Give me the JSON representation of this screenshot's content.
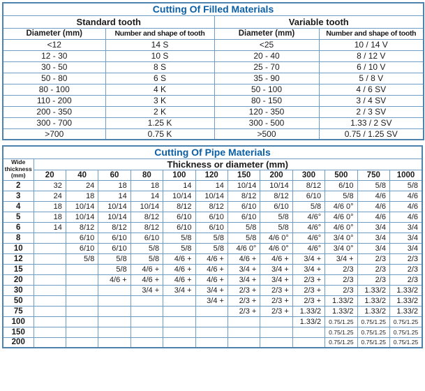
{
  "colors": {
    "title_blue": "#0b5fa5",
    "border_blue": "#6d9cc5",
    "outer_border_blue": "#4d82ad",
    "text": "#1b1b1b"
  },
  "filled_table": {
    "title": "Cutting Of Filled Materials",
    "groups": [
      {
        "label": "Standard tooth"
      },
      {
        "label": "Variable tooth"
      }
    ],
    "col_headers": [
      "Diameter (mm)",
      "Number and shape of tooth",
      "Diameter (mm)",
      "Number and shape of tooth"
    ],
    "rows": [
      [
        "<12",
        "14 S",
        "<25",
        "10 / 14 V"
      ],
      [
        "12 - 30",
        "10 S",
        "20 - 40",
        "8 / 12 V"
      ],
      [
        "30 - 50",
        "8 S",
        "25 - 70",
        "6 / 10 V"
      ],
      [
        "50 - 80",
        "6 S",
        "35 - 90",
        "5 / 8 V"
      ],
      [
        "80 - 100",
        "4 K",
        "50 - 100",
        "4 / 6 SV"
      ],
      [
        "110 - 200",
        "3 K",
        "80 - 150",
        "3 / 4 SV"
      ],
      [
        "200 - 350",
        "2 K",
        "120 - 350",
        "2 / 3 SV"
      ],
      [
        "300 - 700",
        "1.25 K",
        "300 - 500",
        "1.33 / 2 SV"
      ],
      [
        ">700",
        "0.75 K",
        ">500",
        "0.75 / 1.25 SV"
      ]
    ]
  },
  "pipe_table": {
    "title": "Cutting Of Pipe Materials",
    "corner_header": "Wide\nthickness\n(mm)",
    "span_header": "Thickness or diameter (mm)",
    "col_headers": [
      "20",
      "40",
      "60",
      "80",
      "100",
      "120",
      "150",
      "200",
      "300",
      "500",
      "750",
      "1000"
    ],
    "rows": [
      {
        "label": "2",
        "values": [
          "32",
          "24",
          "18",
          "18",
          "14",
          "14",
          "10/14",
          "10/14",
          "8/12",
          "6/10",
          "5/8",
          "5/8"
        ]
      },
      {
        "label": "3",
        "values": [
          "24",
          "18",
          "14",
          "14",
          "10/14",
          "10/14",
          "8/12",
          "8/12",
          "6/10",
          "5/8",
          "4/6",
          "4/6"
        ]
      },
      {
        "label": "4",
        "values": [
          "18",
          "10/14",
          "10/14",
          "10/14",
          "8/12",
          "8/12",
          "6/10",
          "6/10",
          "5/8",
          "4/6 0°",
          "4/6",
          "4/6"
        ]
      },
      {
        "label": "5",
        "values": [
          "18",
          "10/14",
          "10/14",
          "8/12",
          "6/10",
          "6/10",
          "6/10",
          "5/8",
          "4/6°",
          "4/6 0°",
          "4/6",
          "4/6"
        ]
      },
      {
        "label": "6",
        "values": [
          "14",
          "8/12",
          "8/12",
          "8/12",
          "6/10",
          "6/10",
          "5/8",
          "5/8",
          "4/6°",
          "4/6 0°",
          "3/4",
          "3/4"
        ]
      },
      {
        "label": "8",
        "values": [
          "",
          "6/10",
          "6/10",
          "6/10",
          "5/8",
          "5/8",
          "5/8",
          "4/6 0°",
          "4/6°",
          "3/4 0°",
          "3/4",
          "3/4"
        ]
      },
      {
        "label": "10",
        "values": [
          "",
          "6/10",
          "6/10",
          "5/8",
          "5/8",
          "5/8",
          "4/6 0°",
          "4/6 0°",
          "4/6°",
          "3/4 0°",
          "3/4",
          "3/4"
        ]
      },
      {
        "label": "12",
        "values": [
          "",
          "5/8",
          "5/8",
          "5/8",
          "4/6 +",
          "4/6 +",
          "4/6 +",
          "4/6 +",
          "3/4 +",
          "3/4 +",
          "2/3",
          "2/3"
        ]
      },
      {
        "label": "15",
        "values": [
          "",
          "",
          "5/8",
          "4/6 +",
          "4/6 +",
          "4/6 +",
          "3/4 +",
          "3/4 +",
          "3/4 +",
          "2/3",
          "2/3",
          "2/3"
        ]
      },
      {
        "label": "20",
        "values": [
          "",
          "",
          "4/6 +",
          "4/6 +",
          "4/6 +",
          "4/6 +",
          "3/4 +",
          "3/4 +",
          "2/3 +",
          "2/3",
          "2/3",
          "2/3"
        ]
      },
      {
        "label": "30",
        "values": [
          "",
          "",
          "",
          "3/4 +",
          "3/4 +",
          "3/4 +",
          "2/3 +",
          "2/3 +",
          "2/3 +",
          "2/3",
          "1.33/2",
          "1.33/2"
        ]
      },
      {
        "label": "50",
        "values": [
          "",
          "",
          "",
          "",
          "",
          "3/4 +",
          "2/3 +",
          "2/3 +",
          "2/3 +",
          "1.33/2",
          "1.33/2",
          "1.33/2"
        ]
      },
      {
        "label": "75",
        "values": [
          "",
          "",
          "",
          "",
          "",
          "",
          "2/3 +",
          "2/3 +",
          "1.33/2",
          "1.33/2",
          "1.33/2",
          "1.33/2"
        ]
      },
      {
        "label": "100",
        "values": [
          "",
          "",
          "",
          "",
          "",
          "",
          "",
          "",
          "1.33/2",
          "0.75/1.25",
          "0.75/1.25",
          "0.75/1.25"
        ]
      },
      {
        "label": "150",
        "values": [
          "",
          "",
          "",
          "",
          "",
          "",
          "",
          "",
          "",
          "0.75/1.25",
          "0.75/1.25",
          "0.75/1.25"
        ]
      },
      {
        "label": "200",
        "values": [
          "",
          "",
          "",
          "",
          "",
          "",
          "",
          "",
          "",
          "0.75/1.25",
          "0.75/1.25",
          "0.75/1.25"
        ]
      }
    ]
  }
}
